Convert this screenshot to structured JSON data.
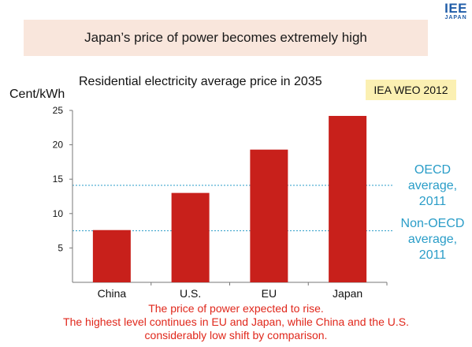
{
  "logo": {
    "main": "IEE",
    "sub": "JAPAN"
  },
  "headline": "Japan’s price of power becomes extremely high",
  "source_badge": "IEA WEO 2012",
  "caption": [
    "The price of power expected to rise.",
    "The highest level continues in EU and Japan, while China and the U.S.",
    "considerably low shift by comparison."
  ],
  "colors": {
    "bar": "#c8201b",
    "reference": "#2a9dc8",
    "caption": "#e0271b",
    "headline_bg": "#f9e6dc",
    "badge_bg": "#fbf0b2"
  },
  "chart_data": {
    "type": "bar",
    "title": "Residential electricity average price in 2035",
    "ylabel": "Cent/kWh",
    "xlabel": "",
    "categories": [
      "China",
      "U.S.",
      "EU",
      "Japan"
    ],
    "values": [
      7.6,
      13.0,
      19.3,
      24.2
    ],
    "ylim": [
      0,
      25
    ],
    "yticks": [
      5,
      10,
      15,
      20,
      25
    ],
    "grid": false,
    "reference_lines": [
      {
        "label": [
          "OECD",
          "average,",
          "2011"
        ],
        "value": 14.1
      },
      {
        "label": [
          "Non-OECD",
          "average,",
          "2011"
        ],
        "value": 7.5
      }
    ]
  }
}
